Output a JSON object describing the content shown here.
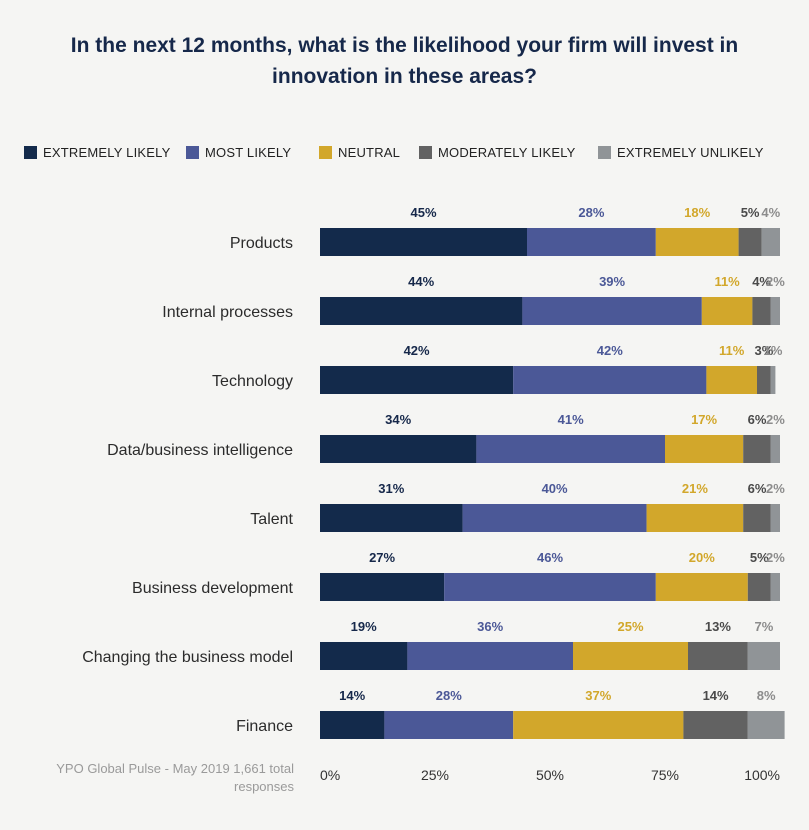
{
  "chart_data": {
    "type": "bar",
    "orientation": "horizontal",
    "stacked": true,
    "title_lines": [
      "In the next 12 months, what is the likelihood your firm will invest in",
      "innovation in these areas?"
    ],
    "categories": [
      "Products",
      "Internal processes",
      "Technology",
      "Data/business intelligence",
      "Talent",
      "Business development",
      "Changing the business model",
      "Finance"
    ],
    "series": [
      {
        "name": "EXTREMELY LIKELY",
        "color": "#132a4b",
        "label_color": "#16284a",
        "values": [
          45,
          44,
          42,
          34,
          31,
          27,
          19,
          14
        ]
      },
      {
        "name": "MOST LIKELY",
        "color": "#4b5897",
        "label_color": "#4b5897",
        "values": [
          28,
          39,
          42,
          41,
          40,
          46,
          36,
          28
        ]
      },
      {
        "name": "NEUTRAL",
        "color": "#d2a72b",
        "label_color": "#d2a72b",
        "values": [
          18,
          11,
          11,
          17,
          21,
          20,
          25,
          37
        ]
      },
      {
        "name": "MODERATELY LIKELY",
        "color": "#626262",
        "label_color": "#4a4a4a",
        "values": [
          5,
          4,
          3,
          6,
          6,
          5,
          13,
          14
        ]
      },
      {
        "name": "EXTREMELY UNLIKELY",
        "color": "#909497",
        "label_color": "#8c8c8c",
        "values": [
          4,
          2,
          1,
          2,
          2,
          2,
          7,
          8
        ]
      }
    ],
    "x_tick_labels": [
      "0%",
      "25%",
      "50%",
      "75%",
      "100%"
    ],
    "xlim": [
      0,
      100
    ],
    "grid": false,
    "legend_position": "top"
  },
  "source_note": "YPO Global Pulse - May 2019 1,661 total responses"
}
